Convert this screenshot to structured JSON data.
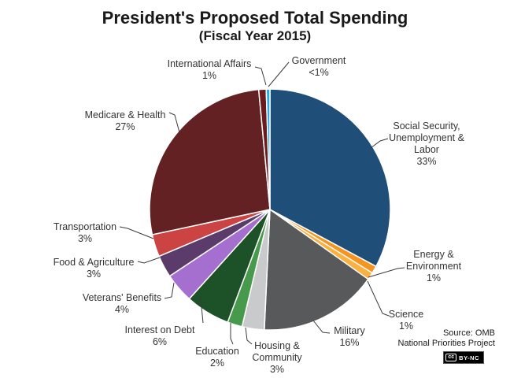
{
  "title": "President's Proposed Total Spending",
  "subtitle": "(Fiscal Year 2015)",
  "source": {
    "line1": "Source: OMB",
    "line2": "National Priorities Project",
    "license": "BY-NC"
  },
  "chart_data": {
    "type": "pie",
    "title": "President's Proposed Total Spending (Fiscal Year 2015)",
    "unit": "percent of total proposed spending",
    "start_angle": "12 o'clock",
    "direction": "clockwise",
    "legend_position": "outside labels with leader lines",
    "slices": [
      {
        "id": "social-security-unemployment-labor",
        "label": "Social Security, Unemployment & Labor",
        "label_lines": [
          "Social Security,",
          "Unemployment &",
          "Labor"
        ],
        "pct_label": "33%",
        "value": 33,
        "color": "#1F4E79"
      },
      {
        "id": "energy-environment",
        "label": "Energy & Environment",
        "label_lines": [
          "Energy &",
          "Environment"
        ],
        "pct_label": "1%",
        "value": 1,
        "color": "#F7941D"
      },
      {
        "id": "science",
        "label": "Science",
        "label_lines": [
          "Science"
        ],
        "pct_label": "1%",
        "value": 1,
        "color": "#FBB040"
      },
      {
        "id": "military",
        "label": "Military",
        "label_lines": [
          "Military"
        ],
        "pct_label": "16%",
        "value": 16,
        "color": "#58595B"
      },
      {
        "id": "housing-community",
        "label": "Housing & Community",
        "label_lines": [
          "Housing &",
          "Community"
        ],
        "pct_label": "3%",
        "value": 3,
        "color": "#C9CACB"
      },
      {
        "id": "education",
        "label": "Education",
        "label_lines": [
          "Education"
        ],
        "pct_label": "2%",
        "value": 2,
        "color": "#479A4C"
      },
      {
        "id": "interest-on-debt",
        "label": "Interest on Debt",
        "label_lines": [
          "Interest on Debt"
        ],
        "pct_label": "6%",
        "value": 6,
        "color": "#1D5229"
      },
      {
        "id": "veterans-benefits",
        "label": "Veterans' Benefits",
        "label_lines": [
          "Veterans' Benefits"
        ],
        "pct_label": "4%",
        "value": 4,
        "color": "#A56FD0"
      },
      {
        "id": "food-agriculture",
        "label": "Food & Agriculture",
        "label_lines": [
          "Food & Agriculture"
        ],
        "pct_label": "3%",
        "value": 3,
        "color": "#5A3B69"
      },
      {
        "id": "transportation",
        "label": "Transportation",
        "label_lines": [
          "Transportation"
        ],
        "pct_label": "3%",
        "value": 3,
        "color": "#CB4343"
      },
      {
        "id": "medicare-health",
        "label": "Medicare & Health",
        "label_lines": [
          "Medicare & Health"
        ],
        "pct_label": "27%",
        "value": 27,
        "color": "#642123"
      },
      {
        "id": "international-affairs",
        "label": "International Affairs",
        "label_lines": [
          "International Affairs"
        ],
        "pct_label": "1%",
        "value": 1,
        "color": "#6B1B1D"
      },
      {
        "id": "government",
        "label": "Government",
        "label_lines": [
          "Government"
        ],
        "pct_label": "<1%",
        "value": 0.5,
        "color": "#29ABE2"
      }
    ]
  }
}
